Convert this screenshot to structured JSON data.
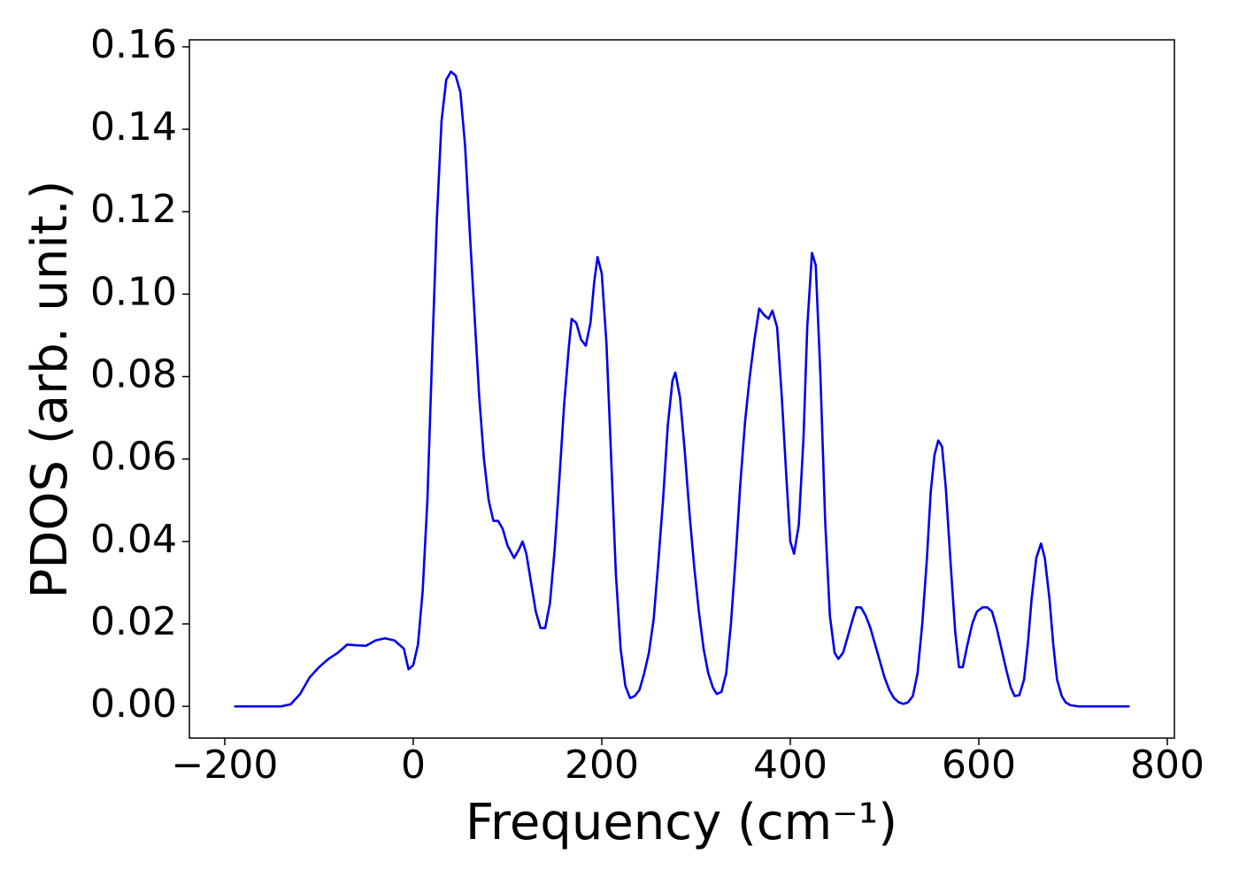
{
  "chart_data": {
    "type": "line",
    "xlabel": "Frequency (cm⁻¹)",
    "ylabel": "PDOS (arb. unit.)",
    "color": "#0000ee",
    "xlim": [
      -237.5,
      807.5
    ],
    "ylim": [
      -0.0077,
      0.1617
    ],
    "xticks": [
      {
        "value": -200,
        "label": "−200"
      },
      0,
      200,
      400,
      600,
      800
    ],
    "yticks": [
      {
        "value": 0,
        "label": "0.00"
      },
      {
        "value": 0.02,
        "label": "0.02"
      },
      {
        "value": 0.04,
        "label": "0.04"
      },
      {
        "value": 0.06,
        "label": "0.06"
      },
      {
        "value": 0.08,
        "label": "0.08"
      },
      {
        "value": 0.1,
        "label": "0.10"
      },
      {
        "value": 0.12,
        "label": "0.12"
      },
      {
        "value": 0.14,
        "label": "0.14"
      },
      {
        "value": 0.16,
        "label": "0.16"
      }
    ],
    "x": [
      -190,
      -140,
      -130,
      -120,
      -110,
      -100,
      -90,
      -80,
      -70,
      -60,
      -50,
      -40,
      -30,
      -20,
      -10,
      -5,
      0,
      5,
      10,
      15,
      20,
      25,
      30,
      35,
      40,
      45,
      50,
      55,
      60,
      65,
      70,
      75,
      80,
      85,
      90,
      95,
      100,
      107,
      112,
      116,
      120,
      125,
      130,
      135,
      140,
      145,
      150,
      155,
      160,
      165,
      168,
      173,
      178,
      183,
      188,
      192,
      195.5,
      200,
      205,
      210,
      215,
      220,
      225,
      230,
      235,
      240,
      245,
      250,
      255,
      260,
      265,
      270,
      275,
      278,
      283,
      288,
      293,
      298,
      303,
      308,
      313,
      318,
      322,
      327,
      332,
      337,
      342,
      347,
      352,
      357,
      362,
      367,
      372,
      377,
      381,
      386,
      391,
      396,
      400,
      404,
      409,
      414,
      418,
      423,
      427,
      432,
      437,
      442,
      447,
      451,
      456,
      461,
      466,
      470,
      475,
      480,
      485,
      490,
      495,
      500,
      505,
      510,
      515,
      520,
      525,
      530,
      535,
      540,
      545,
      549,
      553,
      557,
      561,
      565,
      570,
      575,
      579,
      583,
      588,
      593,
      598,
      604,
      609,
      614,
      619,
      624,
      629,
      634,
      638,
      643,
      648,
      652,
      656,
      661,
      666,
      670,
      675,
      679,
      683,
      688,
      692,
      697,
      705,
      760
    ],
    "values": [
      0,
      0,
      0.0005,
      0.003,
      0.007,
      0.0095,
      0.0115,
      0.013,
      0.015,
      0.0148,
      0.0147,
      0.016,
      0.0165,
      0.016,
      0.014,
      0.009,
      0.01,
      0.015,
      0.028,
      0.05,
      0.085,
      0.118,
      0.142,
      0.152,
      0.154,
      0.153,
      0.149,
      0.136,
      0.115,
      0.095,
      0.075,
      0.06,
      0.05,
      0.045,
      0.045,
      0.043,
      0.039,
      0.036,
      0.038,
      0.04,
      0.037,
      0.03,
      0.023,
      0.019,
      0.019,
      0.025,
      0.038,
      0.055,
      0.073,
      0.087,
      0.094,
      0.093,
      0.089,
      0.0875,
      0.093,
      0.103,
      0.109,
      0.105,
      0.088,
      0.06,
      0.032,
      0.014,
      0.005,
      0.002,
      0.0025,
      0.004,
      0.008,
      0.013,
      0.021,
      0.035,
      0.05,
      0.068,
      0.079,
      0.081,
      0.075,
      0.062,
      0.047,
      0.034,
      0.023,
      0.014,
      0.008,
      0.0045,
      0.003,
      0.0035,
      0.008,
      0.02,
      0.036,
      0.054,
      0.069,
      0.08,
      0.089,
      0.0965,
      0.095,
      0.094,
      0.096,
      0.092,
      0.075,
      0.055,
      0.04,
      0.037,
      0.044,
      0.065,
      0.092,
      0.11,
      0.107,
      0.08,
      0.045,
      0.022,
      0.013,
      0.0115,
      0.013,
      0.017,
      0.021,
      0.024,
      0.024,
      0.022,
      0.019,
      0.015,
      0.011,
      0.007,
      0.004,
      0.002,
      0.001,
      0.0006,
      0.001,
      0.0025,
      0.008,
      0.02,
      0.036,
      0.052,
      0.061,
      0.0645,
      0.063,
      0.053,
      0.035,
      0.018,
      0.0095,
      0.0095,
      0.015,
      0.02,
      0.023,
      0.024,
      0.024,
      0.023,
      0.019,
      0.014,
      0.009,
      0.0045,
      0.0025,
      0.0027,
      0.0065,
      0.015,
      0.026,
      0.036,
      0.0395,
      0.036,
      0.026,
      0.015,
      0.0065,
      0.0025,
      0.001,
      0.0003,
      0,
      0
    ]
  }
}
